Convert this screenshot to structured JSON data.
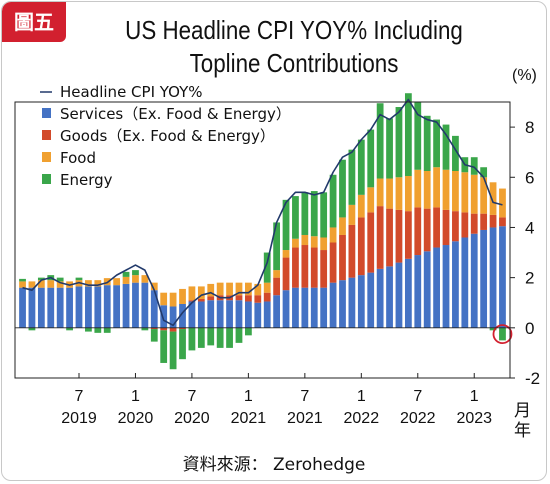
{
  "badge": "圖五",
  "source": "資料來源： Zerohedge",
  "chart_data": {
    "type": "bar",
    "stacked": true,
    "title": "US Headline CPI YOY% Including Topline Contributions",
    "unit_label": "(%)",
    "ylim": [
      -2,
      9
    ],
    "yticks": [
      -2,
      0,
      2,
      4,
      6,
      8
    ],
    "grid": false,
    "legend_position": "top-left",
    "x_axis_unit": "月\n年",
    "x_month_labels": [
      "7",
      "1",
      "7",
      "1",
      "7",
      "1",
      "7",
      "1"
    ],
    "x_year_labels": [
      "2019",
      "2020",
      "2020",
      "2021",
      "2021",
      "2022",
      "2022",
      "2023"
    ],
    "x_tick_months": [
      "2019-07",
      "2020-01",
      "2020-07",
      "2021-01",
      "2021-07",
      "2022-01",
      "2022-07",
      "2023-01"
    ],
    "months": [
      "2019-01",
      "2019-02",
      "2019-03",
      "2019-04",
      "2019-05",
      "2019-06",
      "2019-07",
      "2019-08",
      "2019-09",
      "2019-10",
      "2019-11",
      "2019-12",
      "2020-01",
      "2020-02",
      "2020-03",
      "2020-04",
      "2020-05",
      "2020-06",
      "2020-07",
      "2020-08",
      "2020-09",
      "2020-10",
      "2020-11",
      "2020-12",
      "2021-01",
      "2021-02",
      "2021-03",
      "2021-04",
      "2021-05",
      "2021-06",
      "2021-07",
      "2021-08",
      "2021-09",
      "2021-10",
      "2021-11",
      "2021-12",
      "2022-01",
      "2022-02",
      "2022-03",
      "2022-04",
      "2022-05",
      "2022-06",
      "2022-07",
      "2022-08",
      "2022-09",
      "2022-10",
      "2022-11",
      "2022-12",
      "2023-01",
      "2023-02",
      "2023-03",
      "2023-04"
    ],
    "series": [
      {
        "name": "Services（Ex. Food & Energy）",
        "color": "#4472c4",
        "values": [
          1.6,
          1.6,
          1.6,
          1.6,
          1.6,
          1.6,
          1.65,
          1.65,
          1.65,
          1.7,
          1.7,
          1.75,
          1.8,
          1.8,
          1.5,
          0.9,
          0.85,
          0.95,
          1.05,
          1.05,
          1.1,
          1.1,
          1.1,
          1.1,
          1.05,
          1.0,
          1.05,
          1.3,
          1.5,
          1.6,
          1.6,
          1.6,
          1.6,
          1.8,
          1.9,
          2.0,
          2.1,
          2.2,
          2.35,
          2.45,
          2.6,
          2.75,
          2.9,
          3.05,
          3.2,
          3.3,
          3.45,
          3.6,
          3.75,
          3.9,
          4.0,
          4.05
        ]
      },
      {
        "name": "Goods（Ex. Food & Energy）",
        "color": "#d24a2a",
        "values": [
          0.0,
          0.0,
          0.0,
          0.0,
          0.0,
          0.0,
          0.0,
          0.0,
          0.0,
          0.0,
          0.0,
          0.0,
          0.0,
          0.0,
          -0.05,
          -0.1,
          -0.15,
          -0.05,
          0.05,
          0.1,
          0.15,
          0.2,
          0.2,
          0.2,
          0.25,
          0.3,
          0.35,
          0.7,
          1.3,
          1.6,
          1.7,
          1.6,
          1.5,
          1.6,
          1.8,
          2.1,
          2.3,
          2.4,
          2.5,
          2.3,
          2.1,
          1.9,
          1.9,
          1.7,
          1.6,
          1.4,
          1.2,
          1.0,
          0.8,
          0.65,
          0.5,
          0.35
        ]
      },
      {
        "name": "Food",
        "color": "#f0a030",
        "values": [
          0.25,
          0.25,
          0.3,
          0.3,
          0.25,
          0.25,
          0.25,
          0.25,
          0.25,
          0.28,
          0.28,
          0.28,
          0.3,
          0.3,
          0.3,
          0.5,
          0.55,
          0.6,
          0.55,
          0.5,
          0.5,
          0.5,
          0.5,
          0.5,
          0.5,
          0.45,
          0.4,
          0.3,
          0.3,
          0.35,
          0.4,
          0.45,
          0.5,
          0.6,
          0.7,
          0.8,
          0.9,
          1.0,
          1.1,
          1.2,
          1.3,
          1.4,
          1.5,
          1.5,
          1.6,
          1.6,
          1.6,
          1.6,
          1.55,
          1.45,
          1.3,
          1.15
        ]
      },
      {
        "name": "Energy",
        "color": "#3aa64a",
        "values": [
          0.1,
          -0.1,
          0.1,
          0.2,
          0.15,
          -0.1,
          0.1,
          -0.15,
          -0.2,
          -0.2,
          0.0,
          0.2,
          0.2,
          -0.1,
          -0.5,
          -1.3,
          -1.5,
          -1.2,
          -0.9,
          -0.8,
          -0.7,
          -0.8,
          -0.8,
          -0.6,
          -0.3,
          0.0,
          1.2,
          1.9,
          2.0,
          1.7,
          1.7,
          1.8,
          1.8,
          2.1,
          2.3,
          2.2,
          2.2,
          2.3,
          3.0,
          2.4,
          2.8,
          3.3,
          2.7,
          2.2,
          1.9,
          1.8,
          1.4,
          0.6,
          0.7,
          0.4,
          -0.1,
          -0.5
        ]
      },
      {
        "name": "Headline CPI YOY%",
        "type": "line",
        "color": "#223a6b",
        "values": [
          1.6,
          1.5,
          1.9,
          2.0,
          1.8,
          1.7,
          1.8,
          1.7,
          1.7,
          1.8,
          2.1,
          2.3,
          2.5,
          2.3,
          1.5,
          0.3,
          0.1,
          0.6,
          1.0,
          1.3,
          1.4,
          1.2,
          1.2,
          1.4,
          1.4,
          1.7,
          2.6,
          4.2,
          5.0,
          5.4,
          5.4,
          5.3,
          5.4,
          6.2,
          6.8,
          7.0,
          7.5,
          7.9,
          8.5,
          8.3,
          8.6,
          9.1,
          8.5,
          8.3,
          8.2,
          7.7,
          7.1,
          6.5,
          6.4,
          6.0,
          5.0,
          4.9
        ]
      }
    ]
  }
}
